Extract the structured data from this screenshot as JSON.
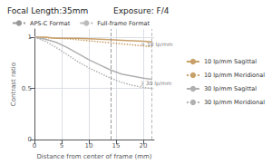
{
  "chart_data": {
    "type": "line",
    "title": "Focal Length:35mm",
    "subtitle": "Exposure: F/4",
    "xlabel": "Distance from center of frame (mm)",
    "ylabel": "Contrast ratio",
    "x": [
      0,
      2,
      4,
      6,
      8,
      10,
      12,
      14,
      16,
      18,
      20,
      21.6
    ],
    "xlim": [
      0,
      22
    ],
    "ylim": [
      0,
      1.08
    ],
    "xticks": [
      0,
      5,
      10,
      15,
      20
    ],
    "yticks": [
      0,
      0.5,
      1
    ],
    "grid": true,
    "legend": "upper right",
    "series": [
      {
        "name": "10 lp/mm Sagittal",
        "color": "#c8a06a",
        "line_style": "solid",
        "values": [
          1.0,
          1.0,
          0.99,
          0.99,
          0.99,
          0.985,
          0.98,
          0.975,
          0.97,
          0.965,
          0.96,
          0.955
        ]
      },
      {
        "name": "10 lp/mm Meridional",
        "color": "#c8a06a",
        "line_style": "dotted",
        "values": [
          1.0,
          0.995,
          0.99,
          0.985,
          0.975,
          0.965,
          0.955,
          0.945,
          0.935,
          0.925,
          0.915,
          0.905
        ]
      },
      {
        "name": "30 lp/mm Sagittal",
        "color": "#b0b0b0",
        "line_style": "solid",
        "values": [
          1.0,
          0.98,
          0.95,
          0.9,
          0.84,
          0.78,
          0.73,
          0.68,
          0.64,
          0.62,
          0.6,
          0.59
        ]
      },
      {
        "name": "30 lp/mm Meridional",
        "color": "#b0b0b0",
        "line_style": "dotted",
        "values": [
          1.0,
          0.96,
          0.9,
          0.83,
          0.76,
          0.7,
          0.65,
          0.6,
          0.56,
          0.53,
          0.51,
          0.5
        ]
      }
    ],
    "reference_lines": [
      {
        "name": "APS-C Format",
        "x": 14.0,
        "color": "#999999",
        "line_style": "dashed"
      },
      {
        "name": "Full-frame Format",
        "x": 21.6,
        "color": "#bbbbbb",
        "line_style": "dashed"
      }
    ],
    "annotations": [
      {
        "text": "> 10 lp/mm",
        "x": 19.5,
        "y": 0.935
      },
      {
        "text": "} 30 lp/mm",
        "x": 19.5,
        "y": 0.555
      }
    ]
  }
}
